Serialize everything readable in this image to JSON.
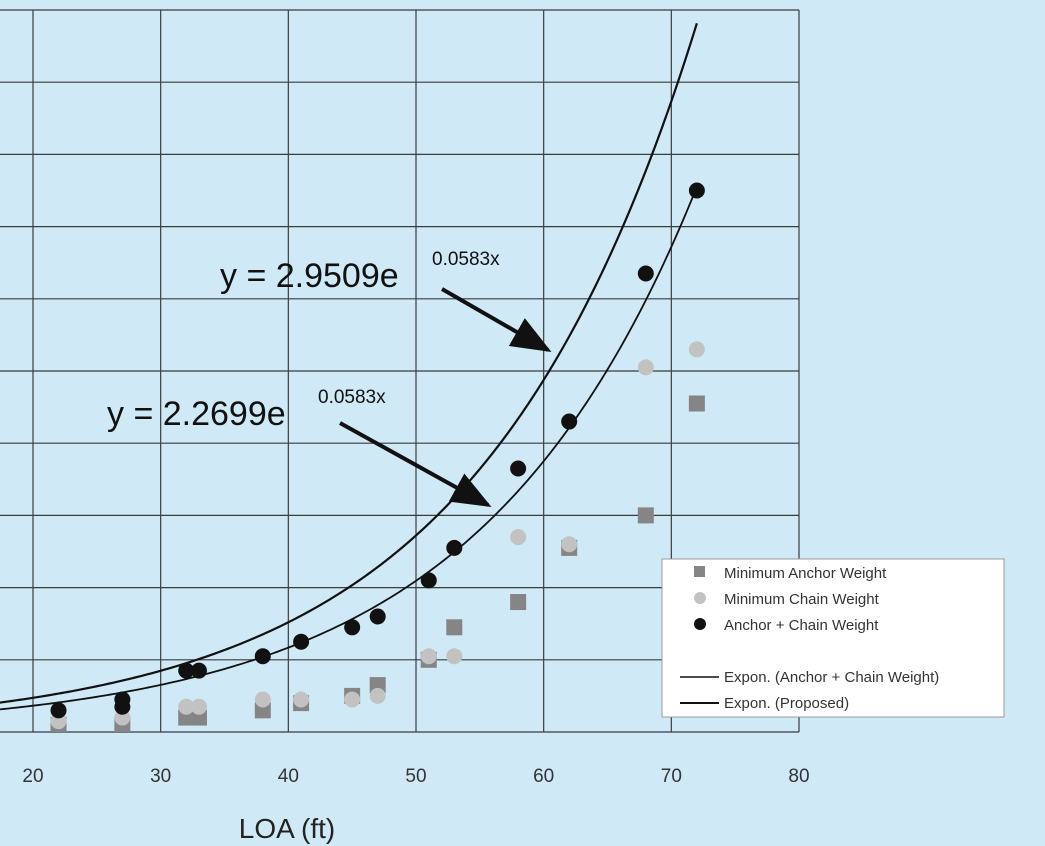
{
  "chart_data": {
    "type": "scatter",
    "xlabel": "LOA (ft)",
    "xlim": [
      20,
      80
    ],
    "x_ticks": [
      "20",
      "30",
      "40",
      "50",
      "60",
      "70",
      "80"
    ],
    "ylim": [
      0,
      200
    ],
    "grid": true,
    "legend_position": "bottom-right",
    "series": [
      {
        "name": "Minimum Anchor Weight",
        "marker": "square",
        "color": "#858585",
        "points": [
          [
            22,
            2
          ],
          [
            27,
            2
          ],
          [
            32,
            4
          ],
          [
            33,
            4
          ],
          [
            38,
            6
          ],
          [
            41,
            8
          ],
          [
            45,
            10
          ],
          [
            47,
            13
          ],
          [
            51,
            20
          ],
          [
            53,
            29
          ],
          [
            58,
            36
          ],
          [
            62,
            51
          ],
          [
            68,
            60
          ],
          [
            72,
            91
          ]
        ]
      },
      {
        "name": "Minimum Chain Weight",
        "marker": "circle",
        "color": "#c2c2c2",
        "points": [
          [
            22,
            3
          ],
          [
            27,
            4
          ],
          [
            32,
            7
          ],
          [
            33,
            7
          ],
          [
            38,
            9
          ],
          [
            41,
            9
          ],
          [
            45,
            9
          ],
          [
            47,
            10
          ],
          [
            51,
            21
          ],
          [
            53,
            21
          ],
          [
            58,
            54
          ],
          [
            62,
            52
          ],
          [
            68,
            101
          ],
          [
            72,
            106
          ]
        ]
      },
      {
        "name": "Anchor + Chain Weight",
        "marker": "circle",
        "color": "#111111",
        "points": [
          [
            22,
            6
          ],
          [
            27,
            7
          ],
          [
            27,
            9
          ],
          [
            32,
            17
          ],
          [
            33,
            17
          ],
          [
            38,
            21
          ],
          [
            41,
            25
          ],
          [
            45,
            29
          ],
          [
            47,
            32
          ],
          [
            51,
            42
          ],
          [
            53,
            51
          ],
          [
            58,
            73
          ],
          [
            62,
            86
          ],
          [
            68,
            127
          ],
          [
            72,
            150
          ]
        ]
      },
      {
        "name": "Expon. (Anchor + Chain Weight)",
        "type": "curve",
        "color": "#111111",
        "a": 2.2699,
        "b": 0.0583,
        "x_range": [
          15,
          72
        ]
      },
      {
        "name": "Expon. (Proposed)",
        "type": "curve",
        "color": "#111111",
        "a": 2.9509,
        "b": 0.0583,
        "x_range": [
          15,
          72
        ]
      }
    ],
    "annotations": [
      {
        "text": "y = 2.9509e",
        "superscript": "0.0583x"
      },
      {
        "text": "y = 2.2699e",
        "superscript": "0.0583x"
      }
    ]
  }
}
